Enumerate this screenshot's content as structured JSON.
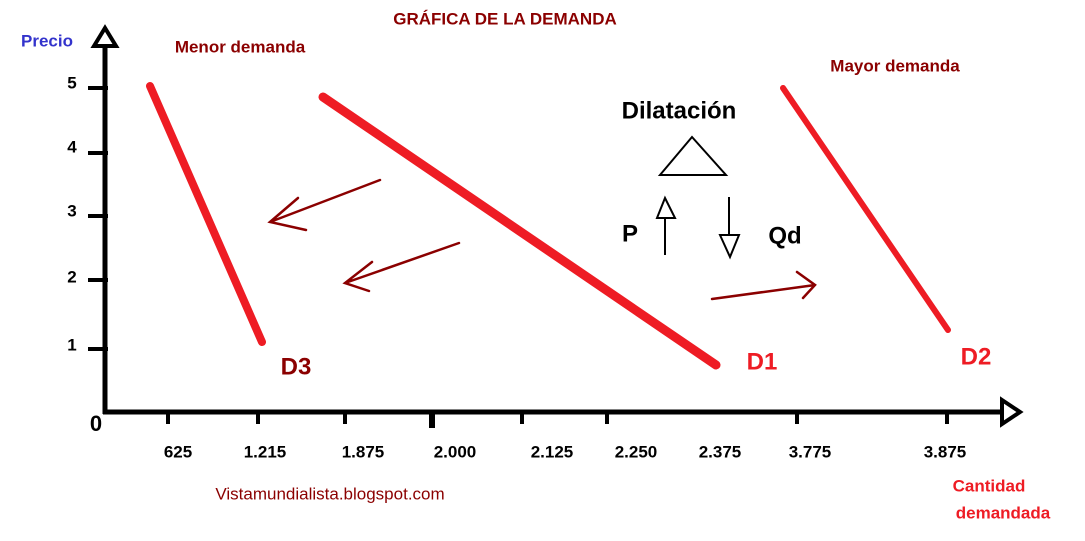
{
  "title": "GRÁFICA DE LA DEMANDA",
  "y_axis": {
    "label": "Precio",
    "ticks": [
      "5",
      "4",
      "3",
      "2",
      "1"
    ],
    "origin": "0"
  },
  "x_axis": {
    "label": [
      "Cantidad",
      "demandada"
    ],
    "ticks": [
      "625",
      "1.215",
      "1.875",
      "2.000",
      "2.125",
      "2.250",
      "2.375",
      "3.775",
      "3.875"
    ]
  },
  "curves": [
    {
      "label": "D3"
    },
    {
      "label": "D1"
    },
    {
      "label": "D2"
    }
  ],
  "annotations": {
    "less": "Menor demanda",
    "more": "Mayor demanda",
    "dilation": "Dilatación",
    "price": "P",
    "quantity": "Qd"
  },
  "source": "Vistamundialista.blogspot.com"
}
